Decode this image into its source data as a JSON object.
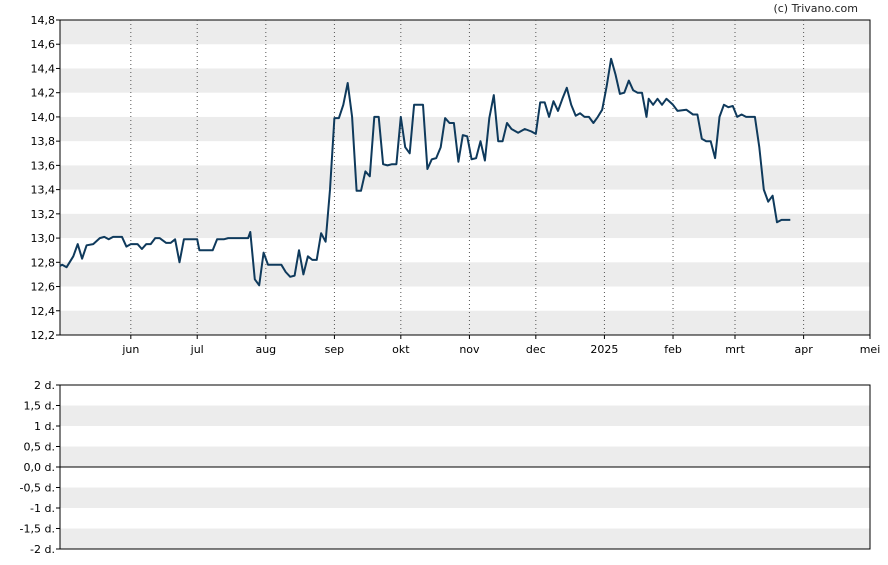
{
  "credit": "(c) Trivano.com",
  "chart_data": [
    {
      "type": "line",
      "title": "",
      "xlabel": "",
      "ylabel": "",
      "ylim": [
        12.2,
        14.8
      ],
      "xlim": [
        "2024-04-30",
        "2025-05-01"
      ],
      "y_ticks": [
        "12,2",
        "12,4",
        "12,6",
        "12,8",
        "13,0",
        "13,2",
        "13,4",
        "13,6",
        "13,8",
        "14,0",
        "14,2",
        "14,4",
        "14,6",
        "14,8"
      ],
      "x_ticks": [
        {
          "label": "jun",
          "date": "2024-06-01"
        },
        {
          "label": "jul",
          "date": "2024-07-01"
        },
        {
          "label": "aug",
          "date": "2024-08-01"
        },
        {
          "label": "sep",
          "date": "2024-09-01"
        },
        {
          "label": "okt",
          "date": "2024-10-01"
        },
        {
          "label": "nov",
          "date": "2024-11-01"
        },
        {
          "label": "dec",
          "date": "2024-12-01"
        },
        {
          "label": "2025",
          "date": "2025-01-01"
        },
        {
          "label": "feb",
          "date": "2025-02-01"
        },
        {
          "label": "mrt",
          "date": "2025-03-01"
        },
        {
          "label": "apr",
          "date": "2025-04-01"
        },
        {
          "label": "mei",
          "date": "2025-05-01"
        }
      ],
      "grid": "horizontal bands and dotted vertical month lines",
      "line_color": "#0f3a5c",
      "series": [
        {
          "values": [
            [
              "2024-04-30",
              12.77
            ],
            [
              "2024-05-01",
              12.78
            ],
            [
              "2024-05-03",
              12.76
            ],
            [
              "2024-05-06",
              12.85
            ],
            [
              "2024-05-08",
              12.95
            ],
            [
              "2024-05-10",
              12.83
            ],
            [
              "2024-05-12",
              12.94
            ],
            [
              "2024-05-15",
              12.95
            ],
            [
              "2024-05-18",
              13.0
            ],
            [
              "2024-05-20",
              13.01
            ],
            [
              "2024-05-22",
              12.99
            ],
            [
              "2024-05-24",
              13.01
            ],
            [
              "2024-05-28",
              13.01
            ],
            [
              "2024-05-30",
              12.93
            ],
            [
              "2024-06-01",
              12.95
            ],
            [
              "2024-06-04",
              12.95
            ],
            [
              "2024-06-06",
              12.91
            ],
            [
              "2024-06-08",
              12.95
            ],
            [
              "2024-06-10",
              12.95
            ],
            [
              "2024-06-12",
              13.0
            ],
            [
              "2024-06-14",
              13.0
            ],
            [
              "2024-06-17",
              12.96
            ],
            [
              "2024-06-19",
              12.96
            ],
            [
              "2024-06-21",
              12.99
            ],
            [
              "2024-06-23",
              12.8
            ],
            [
              "2024-06-25",
              12.99
            ],
            [
              "2024-06-28",
              12.99
            ],
            [
              "2024-07-01",
              12.99
            ],
            [
              "2024-07-02",
              12.9
            ],
            [
              "2024-07-05",
              12.9
            ],
            [
              "2024-07-08",
              12.9
            ],
            [
              "2024-07-10",
              12.99
            ],
            [
              "2024-07-13",
              12.99
            ],
            [
              "2024-07-15",
              13.0
            ],
            [
              "2024-07-17",
              13.0
            ],
            [
              "2024-07-20",
              13.0
            ],
            [
              "2024-07-22",
              13.0
            ],
            [
              "2024-07-24",
              13.0
            ],
            [
              "2024-07-25",
              13.05
            ],
            [
              "2024-07-27",
              12.66
            ],
            [
              "2024-07-29",
              12.61
            ],
            [
              "2024-07-31",
              12.88
            ],
            [
              "2024-08-02",
              12.78
            ],
            [
              "2024-08-05",
              12.78
            ],
            [
              "2024-08-08",
              12.78
            ],
            [
              "2024-08-10",
              12.72
            ],
            [
              "2024-08-12",
              12.68
            ],
            [
              "2024-08-14",
              12.69
            ],
            [
              "2024-08-16",
              12.9
            ],
            [
              "2024-08-18",
              12.7
            ],
            [
              "2024-08-20",
              12.85
            ],
            [
              "2024-08-22",
              12.82
            ],
            [
              "2024-08-24",
              12.82
            ],
            [
              "2024-08-26",
              13.04
            ],
            [
              "2024-08-28",
              12.97
            ],
            [
              "2024-08-30",
              13.4
            ],
            [
              "2024-09-01",
              13.99
            ],
            [
              "2024-09-03",
              13.99
            ],
            [
              "2024-09-05",
              14.1
            ],
            [
              "2024-09-07",
              14.28
            ],
            [
              "2024-09-09",
              14.0
            ],
            [
              "2024-09-11",
              13.39
            ],
            [
              "2024-09-13",
              13.39
            ],
            [
              "2024-09-15",
              13.55
            ],
            [
              "2024-09-17",
              13.51
            ],
            [
              "2024-09-19",
              14.0
            ],
            [
              "2024-09-21",
              14.0
            ],
            [
              "2024-09-23",
              13.61
            ],
            [
              "2024-09-25",
              13.6
            ],
            [
              "2024-09-27",
              13.61
            ],
            [
              "2024-09-29",
              13.61
            ],
            [
              "2024-10-01",
              14.0
            ],
            [
              "2024-10-03",
              13.75
            ],
            [
              "2024-10-05",
              13.7
            ],
            [
              "2024-10-07",
              14.1
            ],
            [
              "2024-10-09",
              14.1
            ],
            [
              "2024-10-11",
              14.1
            ],
            [
              "2024-10-13",
              13.57
            ],
            [
              "2024-10-15",
              13.65
            ],
            [
              "2024-10-17",
              13.66
            ],
            [
              "2024-10-19",
              13.75
            ],
            [
              "2024-10-21",
              13.99
            ],
            [
              "2024-10-23",
              13.95
            ],
            [
              "2024-10-25",
              13.95
            ],
            [
              "2024-10-27",
              13.63
            ],
            [
              "2024-10-29",
              13.85
            ],
            [
              "2024-10-31",
              13.84
            ],
            [
              "2024-11-02",
              13.65
            ],
            [
              "2024-11-04",
              13.66
            ],
            [
              "2024-11-06",
              13.8
            ],
            [
              "2024-11-08",
              13.64
            ],
            [
              "2024-11-10",
              13.99
            ],
            [
              "2024-11-12",
              14.18
            ],
            [
              "2024-11-14",
              13.8
            ],
            [
              "2024-11-16",
              13.8
            ],
            [
              "2024-11-18",
              13.95
            ],
            [
              "2024-11-20",
              13.9
            ],
            [
              "2024-11-23",
              13.87
            ],
            [
              "2024-11-26",
              13.9
            ],
            [
              "2024-11-29",
              13.88
            ],
            [
              "2024-12-01",
              13.86
            ],
            [
              "2024-12-03",
              14.12
            ],
            [
              "2024-12-05",
              14.12
            ],
            [
              "2024-12-07",
              14.0
            ],
            [
              "2024-12-09",
              14.13
            ],
            [
              "2024-12-11",
              14.05
            ],
            [
              "2024-12-13",
              14.15
            ],
            [
              "2024-12-15",
              14.24
            ],
            [
              "2024-12-17",
              14.1
            ],
            [
              "2024-12-19",
              14.01
            ],
            [
              "2024-12-21",
              14.03
            ],
            [
              "2024-12-23",
              14.0
            ],
            [
              "2024-12-25",
              14.0
            ],
            [
              "2024-12-27",
              13.95
            ],
            [
              "2024-12-29",
              14.0
            ],
            [
              "2024-12-31",
              14.06
            ],
            [
              "2025-01-02",
              14.25
            ],
            [
              "2025-01-04",
              14.48
            ],
            [
              "2025-01-06",
              14.35
            ],
            [
              "2025-01-08",
              14.19
            ],
            [
              "2025-01-10",
              14.2
            ],
            [
              "2025-01-12",
              14.3
            ],
            [
              "2025-01-14",
              14.22
            ],
            [
              "2025-01-16",
              14.2
            ],
            [
              "2025-01-18",
              14.2
            ],
            [
              "2025-01-20",
              14.0
            ],
            [
              "2025-01-21",
              14.15
            ],
            [
              "2025-01-23",
              14.1
            ],
            [
              "2025-01-25",
              14.15
            ],
            [
              "2025-01-27",
              14.1
            ],
            [
              "2025-01-29",
              14.15
            ],
            [
              "2025-02-01",
              14.1
            ],
            [
              "2025-02-03",
              14.05
            ],
            [
              "2025-02-07",
              14.06
            ],
            [
              "2025-02-10",
              14.02
            ],
            [
              "2025-02-12",
              14.02
            ],
            [
              "2025-02-14",
              13.82
            ],
            [
              "2025-02-16",
              13.8
            ],
            [
              "2025-02-18",
              13.8
            ],
            [
              "2025-02-20",
              13.66
            ],
            [
              "2025-02-22",
              14.0
            ],
            [
              "2025-02-24",
              14.1
            ],
            [
              "2025-02-26",
              14.08
            ],
            [
              "2025-02-28",
              14.09
            ],
            [
              "2025-03-02",
              14.0
            ],
            [
              "2025-03-04",
              14.02
            ],
            [
              "2025-03-06",
              14.0
            ],
            [
              "2025-03-08",
              14.0
            ],
            [
              "2025-03-10",
              14.0
            ],
            [
              "2025-03-12",
              13.75
            ],
            [
              "2025-03-14",
              13.4
            ],
            [
              "2025-03-16",
              13.3
            ],
            [
              "2025-03-18",
              13.35
            ],
            [
              "2025-03-20",
              13.13
            ],
            [
              "2025-03-22",
              13.15
            ],
            [
              "2025-03-26",
              13.15
            ]
          ]
        }
      ]
    },
    {
      "type": "bar",
      "title": "",
      "xlabel": "",
      "ylabel": "",
      "ylim": [
        -2,
        2
      ],
      "y_ticks": [
        "2 d.",
        "1,5 d.",
        "1 d.",
        "0,5 d.",
        "0,0 d.",
        "-0,5 d.",
        "-1 d.",
        "-1,5 d.",
        "-2 d."
      ],
      "grid": "horizontal bands",
      "series": []
    }
  ]
}
